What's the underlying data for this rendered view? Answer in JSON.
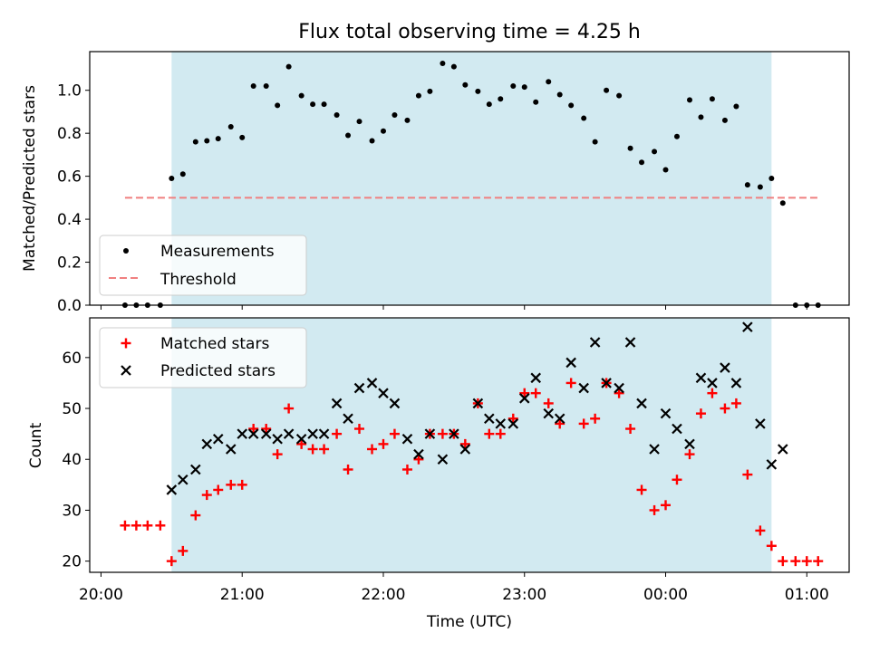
{
  "chart_data": [
    {
      "type": "scatter",
      "title": "Flux total observing time = 4.25 h",
      "xlabel": "",
      "ylabel": "Matched/Predicted stars",
      "ylim": [
        0,
        1.18
      ],
      "yticks": [
        "0.0",
        "0.2",
        "0.4",
        "0.6",
        "0.8",
        "1.0"
      ],
      "xlim": [
        -0.08,
        5.3
      ],
      "shaded_interval": [
        0.5,
        4.75
      ],
      "shade_color": "#add8e6",
      "threshold": {
        "label": "Threshold",
        "value": 0.5,
        "x_range": [
          0.17,
          5.08
        ],
        "color": "#f08080"
      },
      "legend_position": "lower-left",
      "series": [
        {
          "name": "Measurements",
          "color": "#000000",
          "marker": "dot",
          "points": [
            [
              0.17,
              0.0
            ],
            [
              0.25,
              0.0
            ],
            [
              0.33,
              0.0
            ],
            [
              0.42,
              0.0
            ],
            [
              0.5,
              0.59
            ],
            [
              0.58,
              0.61
            ],
            [
              0.67,
              0.76
            ],
            [
              0.75,
              0.765
            ],
            [
              0.83,
              0.775
            ],
            [
              0.92,
              0.83
            ],
            [
              1.0,
              0.78
            ],
            [
              1.08,
              1.02
            ],
            [
              1.17,
              1.02
            ],
            [
              1.25,
              0.93
            ],
            [
              1.33,
              1.11
            ],
            [
              1.42,
              0.975
            ],
            [
              1.5,
              0.935
            ],
            [
              1.58,
              0.935
            ],
            [
              1.67,
              0.885
            ],
            [
              1.75,
              0.79
            ],
            [
              1.83,
              0.855
            ],
            [
              1.92,
              0.765
            ],
            [
              2.0,
              0.81
            ],
            [
              2.08,
              0.885
            ],
            [
              2.17,
              0.86
            ],
            [
              2.25,
              0.975
            ],
            [
              2.33,
              0.995
            ],
            [
              2.42,
              1.125
            ],
            [
              2.5,
              1.11
            ],
            [
              2.58,
              1.025
            ],
            [
              2.67,
              0.995
            ],
            [
              2.75,
              0.935
            ],
            [
              2.83,
              0.96
            ],
            [
              2.92,
              1.02
            ],
            [
              3.0,
              1.015
            ],
            [
              3.08,
              0.945
            ],
            [
              3.17,
              1.04
            ],
            [
              3.25,
              0.98
            ],
            [
              3.33,
              0.93
            ],
            [
              3.42,
              0.87
            ],
            [
              3.5,
              0.76
            ],
            [
              3.58,
              1.0
            ],
            [
              3.67,
              0.975
            ],
            [
              3.75,
              0.73
            ],
            [
              3.83,
              0.665
            ],
            [
              3.92,
              0.715
            ],
            [
              4.0,
              0.63
            ],
            [
              4.08,
              0.785
            ],
            [
              4.17,
              0.955
            ],
            [
              4.25,
              0.875
            ],
            [
              4.33,
              0.96
            ],
            [
              4.42,
              0.86
            ],
            [
              4.5,
              0.925
            ],
            [
              4.58,
              0.56
            ],
            [
              4.67,
              0.55
            ],
            [
              4.75,
              0.59
            ],
            [
              4.83,
              0.475
            ],
            [
              4.92,
              0.0
            ],
            [
              5.0,
              0.0
            ],
            [
              5.08,
              0.0
            ]
          ]
        }
      ]
    },
    {
      "type": "scatter",
      "xlabel": "Time (UTC)",
      "ylabel": "Count",
      "ylim": [
        17.8,
        67.8
      ],
      "yticks": [
        "20",
        "30",
        "40",
        "50",
        "60"
      ],
      "xlim": [
        -0.08,
        5.3
      ],
      "xticks": [
        {
          "value": 0,
          "label": "20:00"
        },
        {
          "value": 1,
          "label": "21:00"
        },
        {
          "value": 2,
          "label": "22:00"
        },
        {
          "value": 3,
          "label": "23:00"
        },
        {
          "value": 4,
          "label": "00:00"
        },
        {
          "value": 5,
          "label": "01:00"
        }
      ],
      "shaded_interval": [
        0.5,
        4.75
      ],
      "shade_color": "#add8e6",
      "legend_position": "upper-left",
      "series": [
        {
          "name": "Matched stars",
          "color": "#ff0000",
          "marker": "plus",
          "points": [
            [
              0.17,
              27
            ],
            [
              0.25,
              27
            ],
            [
              0.33,
              27
            ],
            [
              0.42,
              27
            ],
            [
              0.5,
              20
            ],
            [
              0.58,
              22
            ],
            [
              0.67,
              29
            ],
            [
              0.75,
              33
            ],
            [
              0.83,
              34
            ],
            [
              0.92,
              35
            ],
            [
              1.0,
              35
            ],
            [
              1.08,
              46
            ],
            [
              1.17,
              46
            ],
            [
              1.25,
              41
            ],
            [
              1.33,
              50
            ],
            [
              1.42,
              43
            ],
            [
              1.5,
              42
            ],
            [
              1.58,
              42
            ],
            [
              1.67,
              45
            ],
            [
              1.75,
              38
            ],
            [
              1.83,
              46
            ],
            [
              1.92,
              42
            ],
            [
              2.0,
              43
            ],
            [
              2.08,
              45
            ],
            [
              2.17,
              38
            ],
            [
              2.25,
              40
            ],
            [
              2.33,
              45
            ],
            [
              2.42,
              45
            ],
            [
              2.5,
              45
            ],
            [
              2.58,
              43
            ],
            [
              2.67,
              51
            ],
            [
              2.75,
              45
            ],
            [
              2.83,
              45
            ],
            [
              2.92,
              48
            ],
            [
              3.0,
              53
            ],
            [
              3.08,
              53
            ],
            [
              3.17,
              51
            ],
            [
              3.25,
              47
            ],
            [
              3.33,
              55
            ],
            [
              3.42,
              47
            ],
            [
              3.5,
              48
            ],
            [
              3.58,
              55
            ],
            [
              3.67,
              53
            ],
            [
              3.75,
              46
            ],
            [
              3.83,
              34
            ],
            [
              3.92,
              30
            ],
            [
              4.0,
              31
            ],
            [
              4.08,
              36
            ],
            [
              4.17,
              41
            ],
            [
              4.25,
              49
            ],
            [
              4.33,
              53
            ],
            [
              4.42,
              50
            ],
            [
              4.5,
              51
            ],
            [
              4.58,
              37
            ],
            [
              4.67,
              26
            ],
            [
              4.75,
              23
            ],
            [
              4.83,
              20
            ],
            [
              4.92,
              20
            ],
            [
              5.0,
              20
            ],
            [
              5.08,
              20
            ]
          ]
        },
        {
          "name": "Predicted stars",
          "color": "#000000",
          "marker": "x",
          "points": [
            [
              0.5,
              34
            ],
            [
              0.58,
              36
            ],
            [
              0.67,
              38
            ],
            [
              0.75,
              43
            ],
            [
              0.83,
              44
            ],
            [
              0.92,
              42
            ],
            [
              1.0,
              45
            ],
            [
              1.08,
              45
            ],
            [
              1.17,
              45
            ],
            [
              1.25,
              44
            ],
            [
              1.33,
              45
            ],
            [
              1.42,
              44
            ],
            [
              1.5,
              45
            ],
            [
              1.58,
              45
            ],
            [
              1.67,
              51
            ],
            [
              1.75,
              48
            ],
            [
              1.83,
              54
            ],
            [
              1.92,
              55
            ],
            [
              2.0,
              53
            ],
            [
              2.08,
              51
            ],
            [
              2.17,
              44
            ],
            [
              2.25,
              41
            ],
            [
              2.33,
              45
            ],
            [
              2.42,
              40
            ],
            [
              2.5,
              45
            ],
            [
              2.58,
              42
            ],
            [
              2.67,
              51
            ],
            [
              2.75,
              48
            ],
            [
              2.83,
              47
            ],
            [
              2.92,
              47
            ],
            [
              3.0,
              52
            ],
            [
              3.08,
              56
            ],
            [
              3.17,
              49
            ],
            [
              3.25,
              48
            ],
            [
              3.33,
              59
            ],
            [
              3.42,
              54
            ],
            [
              3.5,
              63
            ],
            [
              3.58,
              55
            ],
            [
              3.67,
              54
            ],
            [
              3.75,
              63
            ],
            [
              3.83,
              51
            ],
            [
              3.92,
              42
            ],
            [
              4.0,
              49
            ],
            [
              4.08,
              46
            ],
            [
              4.17,
              43
            ],
            [
              4.25,
              56
            ],
            [
              4.33,
              55
            ],
            [
              4.42,
              58
            ],
            [
              4.5,
              55
            ],
            [
              4.58,
              66
            ],
            [
              4.67,
              47
            ],
            [
              4.75,
              39
            ],
            [
              4.83,
              42
            ]
          ]
        }
      ]
    }
  ]
}
